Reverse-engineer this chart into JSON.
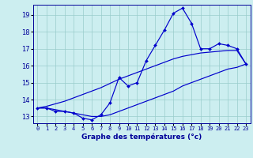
{
  "xlabel": "Graphe des températures (°c)",
  "bg_color": "#cceef0",
  "grid_color": "#99cccc",
  "line_color": "#0000cc",
  "xlim": [
    -0.5,
    23.5
  ],
  "ylim": [
    12.6,
    19.6
  ],
  "yticks": [
    13,
    14,
    15,
    16,
    17,
    18,
    19
  ],
  "xticks": [
    0,
    1,
    2,
    3,
    4,
    5,
    6,
    7,
    8,
    9,
    10,
    11,
    12,
    13,
    14,
    15,
    16,
    17,
    18,
    19,
    20,
    21,
    22,
    23
  ],
  "hours": [
    0,
    1,
    2,
    3,
    4,
    5,
    6,
    7,
    8,
    9,
    10,
    11,
    12,
    13,
    14,
    15,
    16,
    17,
    18,
    19,
    20,
    21,
    22,
    23
  ],
  "temp_actual": [
    13.5,
    13.5,
    13.3,
    13.3,
    13.2,
    12.9,
    12.8,
    13.1,
    13.8,
    15.3,
    14.8,
    15.0,
    16.3,
    17.2,
    18.1,
    19.1,
    19.4,
    18.5,
    17.0,
    17.0,
    17.3,
    17.2,
    17.0,
    16.1
  ],
  "temp_min": [
    13.5,
    13.5,
    13.4,
    13.3,
    13.2,
    13.1,
    13.0,
    13.0,
    13.1,
    13.3,
    13.5,
    13.7,
    13.9,
    14.1,
    14.3,
    14.5,
    14.8,
    15.0,
    15.2,
    15.4,
    15.6,
    15.8,
    15.9,
    16.1
  ],
  "temp_max": [
    13.5,
    13.6,
    13.75,
    13.9,
    14.1,
    14.3,
    14.5,
    14.7,
    14.95,
    15.2,
    15.4,
    15.6,
    15.8,
    16.0,
    16.2,
    16.4,
    16.55,
    16.65,
    16.75,
    16.8,
    16.85,
    16.9,
    16.9,
    16.1
  ]
}
